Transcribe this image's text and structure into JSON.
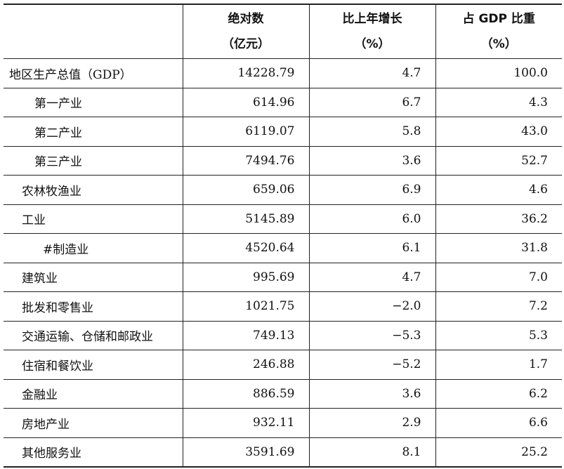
{
  "header": {
    "col0": "",
    "col1_line1": "绝对数",
    "col1_line2": "（亿元）",
    "col2_line1": "比上年增长",
    "col2_line2": "（%）",
    "col3_line1": "占 GDP 比重",
    "col3_line2": "（%）"
  },
  "rows": [
    {
      "label": "地区生产总值（GDP）",
      "absolute": "14228.79",
      "growth": "4.7",
      "share": "100.0"
    },
    {
      "label": "第一产业",
      "absolute": "614.96",
      "growth": "6.7",
      "share": "4.3"
    },
    {
      "label": "第二产业",
      "absolute": "6119.07",
      "growth": "5.8",
      "share": "43.0"
    },
    {
      "label": "第三产业",
      "absolute": "7494.76",
      "growth": "3.6",
      "share": "52.7"
    },
    {
      "label": "农林牧渔业",
      "absolute": "659.06",
      "growth": "6.9",
      "share": "4.6"
    },
    {
      "label": "工业",
      "absolute": "5145.89",
      "growth": "6.0",
      "share": "36.2"
    },
    {
      "label": "#制造业",
      "absolute": "4520.64",
      "growth": "6.1",
      "share": "31.8"
    },
    {
      "label": "建筑业",
      "absolute": "995.69",
      "growth": "4.7",
      "share": "7.0"
    },
    {
      "label": "批发和零售业",
      "absolute": "1021.75",
      "growth": "−2.0",
      "share": "7.2"
    },
    {
      "label": "交通运输、仓储和邮政业",
      "absolute": "749.13",
      "growth": "−5.3",
      "share": "5.3"
    },
    {
      "label": "住宿和餐饮业",
      "absolute": "246.88",
      "growth": "−5.2",
      "share": "1.7"
    },
    {
      "label": "金融业",
      "absolute": "886.59",
      "growth": "3.6",
      "share": "6.2"
    },
    {
      "label": "房地产业",
      "absolute": "932.11",
      "growth": "2.9",
      "share": "6.6"
    },
    {
      "label": "其他服务业",
      "absolute": "3591.69",
      "growth": "8.1",
      "share": "25.2"
    }
  ]
}
